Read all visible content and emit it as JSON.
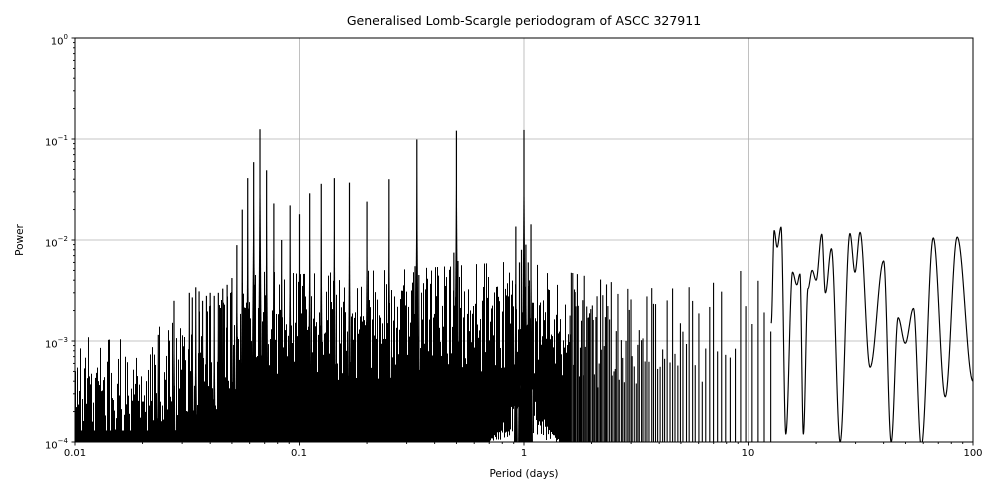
{
  "figure": {
    "background": "#ffffff",
    "line_color": "#000000",
    "grid_color": "#b0b0b0",
    "spine_color": "#000000",
    "text_color": "#000000"
  },
  "chart_data": {
    "type": "line",
    "title": "Generalised Lomb-Scargle periodogram of ASCC 327911",
    "xlabel": "Period (days)",
    "ylabel": "Power",
    "x_scale": "log",
    "y_scale": "log",
    "xlim": [
      0.01,
      100
    ],
    "ylim": [
      0.0001,
      1
    ],
    "grid": true,
    "legend": false,
    "x_ticks": [
      {
        "label": "0.01",
        "value": 0.01
      },
      {
        "label": "0.1",
        "value": 0.1
      },
      {
        "label": "1",
        "value": 1
      },
      {
        "label": "10",
        "value": 10
      },
      {
        "label": "100",
        "value": 100
      }
    ],
    "y_ticks": [
      {
        "base": "10",
        "exp": "0",
        "value": 1
      },
      {
        "base": "10",
        "exp": "−1",
        "value": 0.1
      },
      {
        "base": "10",
        "exp": "−2",
        "value": 0.01
      },
      {
        "base": "10",
        "exp": "−3",
        "value": 0.001
      },
      {
        "base": "10",
        "exp": "−4",
        "value": 0.0001
      }
    ],
    "grid_x_values": [
      0.1,
      1,
      10
    ],
    "grid_y_values": [
      0.1,
      0.01,
      0.001
    ],
    "alias_peaks": [
      [
        0.0235,
        0.00115
      ],
      [
        0.0276,
        0.0025
      ],
      [
        0.0323,
        0.003
      ],
      [
        0.0333,
        0.0027
      ],
      [
        0.0345,
        0.0034
      ],
      [
        0.0357,
        0.0031
      ],
      [
        0.037,
        0.0025
      ],
      [
        0.0385,
        0.0028
      ],
      [
        0.04,
        0.003
      ],
      [
        0.0417,
        0.0028
      ],
      [
        0.0435,
        0.003
      ],
      [
        0.0455,
        0.0033
      ],
      [
        0.0476,
        0.0036
      ],
      [
        0.05,
        0.0042
      ],
      [
        0.0526,
        0.0089
      ],
      [
        0.0556,
        0.02
      ],
      [
        0.0588,
        0.041
      ],
      [
        0.0625,
        0.059
      ],
      [
        0.0667,
        0.125
      ],
      [
        0.0714,
        0.049
      ],
      [
        0.0769,
        0.023
      ],
      [
        0.0833,
        0.01
      ],
      [
        0.0909,
        0.022
      ],
      [
        0.1,
        0.018
      ],
      [
        0.111,
        0.029
      ],
      [
        0.125,
        0.036
      ],
      [
        0.143,
        0.041
      ],
      [
        0.167,
        0.037
      ],
      [
        0.2,
        0.024
      ],
      [
        0.25,
        0.04
      ],
      [
        0.333,
        0.099
      ],
      [
        0.5,
        0.121
      ],
      [
        1.0,
        0.123
      ]
    ],
    "side_peaks": [
      [
        0.327,
        0.0055
      ],
      [
        0.34,
        0.0045
      ],
      [
        0.487,
        0.0075
      ],
      [
        0.508,
        0.0062
      ],
      [
        0.92,
        0.0136
      ],
      [
        0.955,
        0.006
      ],
      [
        0.975,
        0.008
      ],
      [
        1.02,
        0.009
      ],
      [
        1.045,
        0.006
      ],
      [
        1.075,
        0.0143
      ]
    ],
    "noise_envelope": [
      [
        0.01,
        0.00042
      ],
      [
        0.014,
        0.00038
      ],
      [
        0.02,
        0.00046
      ],
      [
        0.03,
        0.0006
      ],
      [
        0.045,
        0.00095
      ],
      [
        0.06,
        0.0016
      ],
      [
        0.075,
        0.0019
      ],
      [
        0.1,
        0.0017
      ],
      [
        0.16,
        0.0018
      ],
      [
        0.3,
        0.0019
      ],
      [
        0.55,
        0.0021
      ],
      [
        0.95,
        0.0023
      ],
      [
        1.4,
        0.0019
      ],
      [
        2.2,
        0.0015
      ],
      [
        4.0,
        0.0012
      ],
      [
        6.5,
        0.0013
      ],
      [
        9.0,
        0.0018
      ],
      [
        12.6,
        0.0022
      ]
    ],
    "smooth_anchors": [
      [
        12.6,
        0.0015
      ],
      [
        13.0,
        0.0124
      ],
      [
        13.4,
        0.0085
      ],
      [
        13.95,
        0.0134
      ],
      [
        14.65,
        0.00012
      ],
      [
        15.7,
        0.0048
      ],
      [
        16.4,
        0.0036
      ],
      [
        16.95,
        0.0046
      ],
      [
        17.55,
        0.00012
      ],
      [
        18.4,
        0.0033
      ],
      [
        19.2,
        0.005
      ],
      [
        20.0,
        0.004
      ],
      [
        21.2,
        0.0114
      ],
      [
        22.0,
        0.003
      ],
      [
        23.4,
        0.0082
      ],
      [
        25.6,
        0.0001
      ],
      [
        28.3,
        0.0116
      ],
      [
        29.8,
        0.0048
      ],
      [
        31.4,
        0.0119
      ],
      [
        34.8,
        0.00055
      ],
      [
        40.0,
        0.0062
      ],
      [
        43.2,
        0.0001
      ],
      [
        46.4,
        0.0017
      ],
      [
        49.9,
        0.00095
      ],
      [
        54.3,
        0.0021
      ],
      [
        58.8,
        9e-05
      ],
      [
        66.5,
        0.0105
      ],
      [
        75.2,
        0.00028
      ],
      [
        85.0,
        0.0107
      ],
      [
        100.0,
        0.0004
      ]
    ],
    "noise_seed": 77123,
    "dense_fill_max_period": 1.6,
    "noise_region_max_period": 12.6,
    "frequency_step": 0.0058
  }
}
